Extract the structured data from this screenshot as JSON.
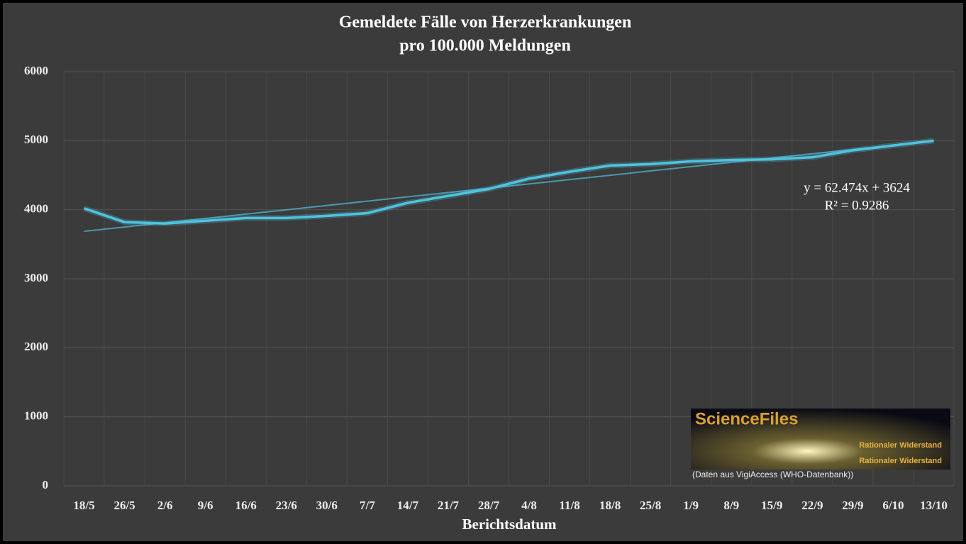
{
  "chart_data": {
    "type": "line",
    "title": [
      "Gemeldete Fälle von Herzerkrankungen",
      "pro 100.000 Meldungen"
    ],
    "x_label": "Berichtsdatum",
    "categories": [
      "18/5",
      "26/5",
      "2/6",
      "9/6",
      "16/6",
      "23/6",
      "30/6",
      "7/7",
      "14/7",
      "21/7",
      "28/7",
      "4/8",
      "11/8",
      "18/8",
      "25/8",
      "1/9",
      "8/9",
      "15/9",
      "22/9",
      "29/9",
      "6/10",
      "13/10"
    ],
    "series": [
      {
        "color": "#4fc3e0",
        "values": [
          4020,
          3820,
          3800,
          3840,
          3880,
          3880,
          3910,
          3950,
          4100,
          4200,
          4300,
          4450,
          4550,
          4640,
          4660,
          4700,
          4720,
          4730,
          4760,
          4860,
          4930,
          5000
        ]
      }
    ],
    "trendline": {
      "slope": 62.474,
      "intercept": 3624,
      "color": "#4fb0cc",
      "labels": [
        "y = 62.474x + 3624",
        "R² = 0.9286"
      ]
    },
    "ylim": [
      0,
      6000
    ],
    "yticks": [
      0,
      1000,
      2000,
      3000,
      4000,
      5000,
      6000
    ],
    "grid": true,
    "watermark": {
      "brand": "ScienceFiles",
      "taglines": [
        "Rationaler Widerstand",
        "Rationaler Widerstand"
      ],
      "source": "(Daten aus VigiAccess (WHO-Datenbank))"
    }
  }
}
